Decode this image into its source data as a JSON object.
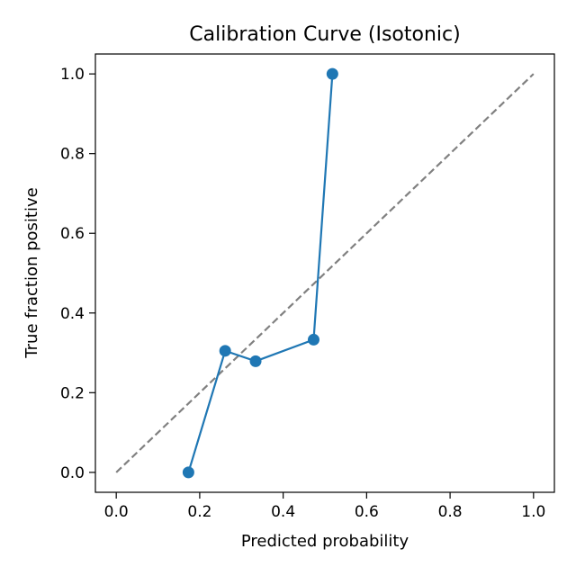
{
  "chart_data": {
    "type": "line",
    "title": "Calibration Curve (Isotonic)",
    "xlabel": "Predicted probability",
    "ylabel": "True fraction positive",
    "xlim": [
      -0.05,
      1.05
    ],
    "ylim": [
      -0.05,
      1.05
    ],
    "xticks": [
      "0.0",
      "0.2",
      "0.4",
      "0.6",
      "0.8",
      "1.0"
    ],
    "yticks": [
      "0.0",
      "0.2",
      "0.4",
      "0.6",
      "0.8",
      "1.0"
    ],
    "grid": false,
    "series": [
      {
        "x": [
          0.173,
          0.261,
          0.334,
          0.473,
          0.518
        ],
        "y": [
          0.0,
          0.305,
          0.279,
          0.333,
          1.0
        ],
        "marker": "circle",
        "color": "#1f77b4"
      }
    ],
    "reference_line": {
      "x": [
        0.0,
        1.0
      ],
      "y": [
        0.0,
        1.0
      ],
      "style": "dashed",
      "color": "#808080"
    }
  }
}
